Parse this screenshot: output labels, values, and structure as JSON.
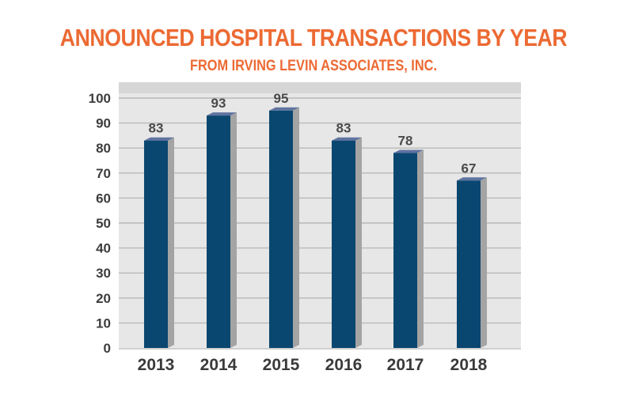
{
  "colors": {
    "title": "#ec6a33",
    "bar_front": "#0a4770",
    "bar_top": "#5f73a0",
    "bar_side": "#a4a4a4",
    "plot_bg": "#e7e7e7",
    "plot_wall": "#d6d6d6",
    "gridline": "#b9b9b9"
  },
  "chart_data": {
    "type": "bar",
    "title": "ANNOUNCED HOSPITAL TRANSACTIONS BY YEAR",
    "subtitle": "FROM IRVING LEVIN ASSOCIATES, INC.",
    "categories": [
      "2013",
      "2014",
      "2015",
      "2016",
      "2017",
      "2018"
    ],
    "values": [
      83,
      93,
      95,
      83,
      78,
      67
    ],
    "data_labels": [
      "83",
      "93",
      "95",
      "83",
      "78",
      "67"
    ],
    "ylim": [
      0,
      100
    ],
    "yticks": [
      "0",
      "10",
      "20",
      "30",
      "40",
      "50",
      "60",
      "70",
      "80",
      "90",
      "100"
    ],
    "grid": true,
    "legend": "none"
  }
}
